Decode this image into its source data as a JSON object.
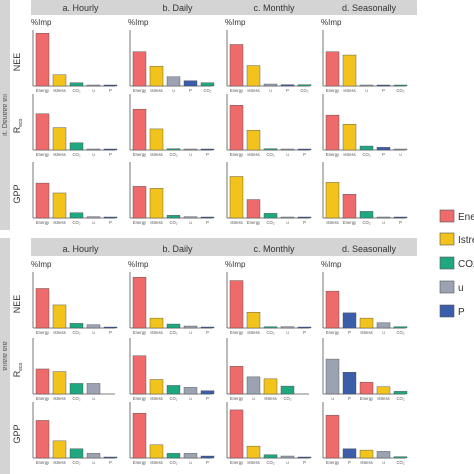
{
  "colors": {
    "Energy": "#ef6b6b",
    "Istress": "#f2c31a",
    "CO2": "#1fa77f",
    "u": "#9ba3b3",
    "P": "#3b5eab",
    "strip": "#d4d4d4",
    "side": "#d4d4d4"
  },
  "legend": {
    "items": [
      {
        "key": "Energy",
        "label": "Ener"
      },
      {
        "key": "Istress",
        "label": "Istre"
      },
      {
        "key": "CO2",
        "label": "CO2"
      },
      {
        "key": "u",
        "label": "u"
      },
      {
        "key": "P",
        "label": "P"
      }
    ]
  },
  "tick_labels": {
    "Energy": "Energy",
    "Istress": "Istress",
    "CO2": "CO₂",
    "u": "u",
    "P": "P"
  },
  "chart_data": [
    {
      "type": "bar",
      "block_label": "ıt. Dɐuɐɐɐ ɐıı",
      "columns": [
        "a. Hourly",
        "b. Daily",
        "c. Monthly",
        "d. Seasonally"
      ],
      "rows": [
        "NEE",
        "Reco",
        "GPP"
      ],
      "ylabel": "%Imp",
      "ylim": [
        0,
        85
      ],
      "panels": [
        [
          [
            {
              "c": "Energy",
              "v": 80
            },
            {
              "c": "Istress",
              "v": 17
            },
            {
              "c": "CO2",
              "v": 5
            },
            {
              "c": "u",
              "v": 1
            },
            {
              "c": "P",
              "v": 1
            }
          ],
          [
            {
              "c": "Energy",
              "v": 52
            },
            {
              "c": "Istress",
              "v": 30
            },
            {
              "c": "u",
              "v": 14
            },
            {
              "c": "P",
              "v": 8
            },
            {
              "c": "CO2",
              "v": 5
            }
          ],
          [
            {
              "c": "Energy",
              "v": 63
            },
            {
              "c": "Istress",
              "v": 31
            },
            {
              "c": "u",
              "v": 3
            },
            {
              "c": "P",
              "v": 2
            },
            {
              "c": "CO2",
              "v": 2
            }
          ],
          [
            {
              "c": "Energy",
              "v": 52
            },
            {
              "c": "Istress",
              "v": 47
            },
            {
              "c": "u",
              "v": 1
            },
            {
              "c": "P",
              "v": 1
            },
            {
              "c": "CO2",
              "v": 1
            }
          ]
        ],
        [
          [
            {
              "c": "Energy",
              "v": 55
            },
            {
              "c": "Istress",
              "v": 34
            },
            {
              "c": "CO2",
              "v": 11
            },
            {
              "c": "u",
              "v": 1
            },
            {
              "c": "P",
              "v": 1
            }
          ],
          [
            {
              "c": "Energy",
              "v": 62
            },
            {
              "c": "Istress",
              "v": 32
            },
            {
              "c": "CO2",
              "v": 2
            },
            {
              "c": "u",
              "v": 1
            },
            {
              "c": "P",
              "v": 1
            }
          ],
          [
            {
              "c": "Energy",
              "v": 68
            },
            {
              "c": "Istress",
              "v": 30
            },
            {
              "c": "CO2",
              "v": 2
            },
            {
              "c": "u",
              "v": 1
            },
            {
              "c": "P",
              "v": 1
            }
          ],
          [
            {
              "c": "Energy",
              "v": 53
            },
            {
              "c": "Istress",
              "v": 39
            },
            {
              "c": "CO2",
              "v": 6
            },
            {
              "c": "P",
              "v": 4
            },
            {
              "c": "u",
              "v": 1
            }
          ]
        ],
        [
          [
            {
              "c": "Energy",
              "v": 53
            },
            {
              "c": "Istress",
              "v": 38
            },
            {
              "c": "CO2",
              "v": 8
            },
            {
              "c": "u",
              "v": 2
            },
            {
              "c": "P",
              "v": 1
            }
          ],
          [
            {
              "c": "Energy",
              "v": 48
            },
            {
              "c": "Istress",
              "v": 45
            },
            {
              "c": "CO2",
              "v": 4
            },
            {
              "c": "u",
              "v": 2
            },
            {
              "c": "P",
              "v": 1
            }
          ],
          [
            {
              "c": "Istress",
              "v": 63
            },
            {
              "c": "Energy",
              "v": 28
            },
            {
              "c": "CO2",
              "v": 7
            },
            {
              "c": "u",
              "v": 1
            },
            {
              "c": "P",
              "v": 1
            }
          ],
          [
            {
              "c": "Istress",
              "v": 54
            },
            {
              "c": "Energy",
              "v": 36
            },
            {
              "c": "CO2",
              "v": 10
            },
            {
              "c": "u",
              "v": 1
            },
            {
              "c": "P",
              "v": 1
            }
          ]
        ]
      ]
    },
    {
      "type": "bar",
      "block_label": "ɐııɐıɐ ɐıɐ",
      "columns": [
        "a. Hourly",
        "b. Daily",
        "c. Monthly",
        "d. Seasonally"
      ],
      "rows": [
        "NEE",
        "Reco",
        "GPP"
      ],
      "ylabel": "%Imp",
      "ylim": [
        0,
        85
      ],
      "panels": [
        [
          [
            {
              "c": "Energy",
              "v": 60
            },
            {
              "c": "Istress",
              "v": 35
            },
            {
              "c": "CO2",
              "v": 7
            },
            {
              "c": "u",
              "v": 5
            },
            {
              "c": "P",
              "v": 1
            }
          ],
          [
            {
              "c": "Energy",
              "v": 77
            },
            {
              "c": "Istress",
              "v": 15
            },
            {
              "c": "CO2",
              "v": 6
            },
            {
              "c": "u",
              "v": 3
            },
            {
              "c": "P",
              "v": 1
            }
          ],
          [
            {
              "c": "Energy",
              "v": 72
            },
            {
              "c": "Istress",
              "v": 24
            },
            {
              "c": "CO2",
              "v": 2
            },
            {
              "c": "u",
              "v": 2
            },
            {
              "c": "P",
              "v": 1
            }
          ],
          [
            {
              "c": "Energy",
              "v": 56
            },
            {
              "c": "P",
              "v": 23
            },
            {
              "c": "Istress",
              "v": 15
            },
            {
              "c": "u",
              "v": 8
            },
            {
              "c": "CO2",
              "v": 2
            }
          ]
        ],
        [
          [
            {
              "c": "Energy",
              "v": 38
            },
            {
              "c": "Istress",
              "v": 34
            },
            {
              "c": "CO2",
              "v": 16
            },
            {
              "c": "u",
              "v": 16
            }
          ],
          [
            {
              "c": "Energy",
              "v": 58
            },
            {
              "c": "Istress",
              "v": 22
            },
            {
              "c": "CO2",
              "v": 13
            },
            {
              "c": "u",
              "v": 10
            },
            {
              "c": "P",
              "v": 5
            }
          ],
          [
            {
              "c": "Energy",
              "v": 42
            },
            {
              "c": "u",
              "v": 26
            },
            {
              "c": "Istress",
              "v": 23
            },
            {
              "c": "CO2",
              "v": 12
            }
          ],
          [
            {
              "c": "u",
              "v": 53
            },
            {
              "c": "P",
              "v": 33
            },
            {
              "c": "Energy",
              "v": 18
            },
            {
              "c": "Istress",
              "v": 11
            },
            {
              "c": "CO2",
              "v": 4
            }
          ]
        ],
        [
          [
            {
              "c": "Energy",
              "v": 57
            },
            {
              "c": "Istress",
              "v": 26
            },
            {
              "c": "CO2",
              "v": 14
            },
            {
              "c": "u",
              "v": 7
            },
            {
              "c": "P",
              "v": 1
            }
          ],
          [
            {
              "c": "Energy",
              "v": 68
            },
            {
              "c": "Istress",
              "v": 20
            },
            {
              "c": "CO2",
              "v": 7
            },
            {
              "c": "u",
              "v": 7
            },
            {
              "c": "P",
              "v": 3
            }
          ],
          [
            {
              "c": "Energy",
              "v": 73
            },
            {
              "c": "Istress",
              "v": 18
            },
            {
              "c": "CO2",
              "v": 5
            },
            {
              "c": "u",
              "v": 3
            },
            {
              "c": "P",
              "v": 1
            }
          ],
          [
            {
              "c": "Energy",
              "v": 65
            },
            {
              "c": "P",
              "v": 14
            },
            {
              "c": "Istress",
              "v": 12
            },
            {
              "c": "u",
              "v": 10
            },
            {
              "c": "CO2",
              "v": 2
            }
          ]
        ]
      ]
    }
  ]
}
